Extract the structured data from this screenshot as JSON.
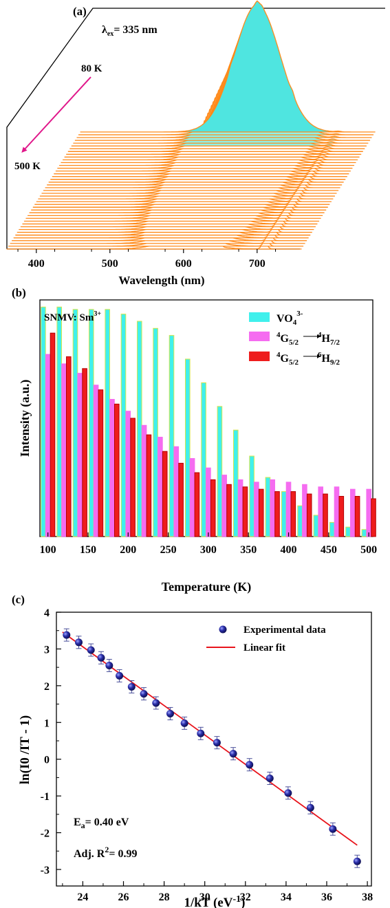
{
  "panels": {
    "a": {
      "label": "(a)"
    },
    "b": {
      "label": "(b)"
    },
    "c": {
      "label": "(c)"
    }
  },
  "chart_data": [
    {
      "type": "area",
      "panel": "a",
      "title": "",
      "xlabel": "Wavelength (nm)",
      "ylabel": "",
      "x_ticks": [
        400,
        500,
        600,
        700
      ],
      "xlim": [
        360,
        760
      ],
      "annotations": {
        "excitation_prefix": "λ",
        "excitation_sub": "ex",
        "excitation_suffix": "= 335 nm",
        "temp_start": "80 K",
        "temp_end": "500 K"
      },
      "series_temperatures_K": [
        80,
        500
      ],
      "series_count": 43,
      "components": {
        "broad_band_peak_nm": 600,
        "sharp_peaks_nm": [
          564,
          600,
          648,
          710
        ]
      },
      "colors": {
        "lines": "#ff8a1a",
        "fill_front": "#4fe5e0",
        "arrow": "#e0178a"
      }
    },
    {
      "type": "bar",
      "panel": "b",
      "title": "",
      "xlabel": "Temperature (K)",
      "ylabel": "Intensity (a.u.)",
      "x_ticks": [
        100,
        150,
        200,
        250,
        300,
        350,
        400,
        450,
        500
      ],
      "xlim": [
        90,
        505
      ],
      "ylim": [
        0,
        100
      ],
      "annotation": {
        "sample_prefix": "SNMV: Sm",
        "sample_sup": "3+"
      },
      "categories": [
        100,
        120,
        140,
        160,
        180,
        200,
        220,
        240,
        260,
        280,
        300,
        320,
        340,
        360,
        380,
        400,
        420,
        440,
        460,
        480,
        500
      ],
      "series": [
        {
          "name": "VO4 3-",
          "legend": {
            "main": "VO",
            "sub": "4",
            "sup": "3-"
          },
          "color": "#40f0ec",
          "edge": "#d8e44a",
          "values": [
            97,
            97,
            96,
            96,
            96,
            94,
            91,
            88,
            85,
            75,
            65,
            55,
            45,
            34,
            25,
            19,
            13,
            9,
            6,
            4,
            3
          ]
        },
        {
          "name": "4G5/2 → 4H7/2",
          "legend": {
            "sup1": "4",
            "main1": "G",
            "sub1": "5/2",
            "sup2": "4",
            "main2": "H",
            "sub2": "7/2"
          },
          "color": "#f56cf0",
          "edge": "#f56cf0",
          "values": [
            77,
            73,
            69,
            64,
            58,
            53,
            47,
            42,
            38,
            33,
            29,
            26,
            24,
            23,
            24,
            23,
            22,
            21,
            21,
            20,
            20
          ]
        },
        {
          "name": "4G5/2 → 6H9/2",
          "legend": {
            "sup1": "4",
            "main1": "G",
            "sub1": "5/2",
            "sup2": "6",
            "main2": "H",
            "sub2": "9/2"
          },
          "color": "#ee1c1c",
          "edge": "#b50000",
          "values": [
            86,
            76,
            71,
            62,
            56,
            50,
            43,
            36,
            31,
            27,
            24,
            22,
            21,
            20,
            19,
            19,
            18,
            18,
            17,
            17,
            16
          ]
        }
      ]
    },
    {
      "type": "scatter",
      "panel": "c",
      "title": "",
      "xlabel": "1/kT (eV",
      "xlabel_sup": "-1",
      "xlabel_close": ")",
      "ylabel": "ln(I0 /IT - 1)",
      "x_ticks": [
        24,
        26,
        28,
        30,
        32,
        34,
        36,
        38
      ],
      "y_ticks": [
        4,
        3,
        2,
        1,
        0,
        -1,
        -2,
        -3
      ],
      "xlim": [
        22.7,
        38.2
      ],
      "ylim": [
        -3.45,
        4
      ],
      "legend": {
        "points": "Experimental data",
        "line": "Linear fit",
        "position": "top-right"
      },
      "annotations": {
        "ea_main": "E",
        "ea_sub": "a",
        "ea_value": "= 0.40 eV",
        "r2_main": "Adj. R",
        "r2_sup": "2",
        "r2_value": "= 0.99"
      },
      "points": [
        {
          "x": 23.2,
          "y": 3.38
        },
        {
          "x": 23.8,
          "y": 3.18
        },
        {
          "x": 24.4,
          "y": 2.97
        },
        {
          "x": 24.9,
          "y": 2.76
        },
        {
          "x": 25.3,
          "y": 2.55
        },
        {
          "x": 25.8,
          "y": 2.27
        },
        {
          "x": 26.4,
          "y": 1.97
        },
        {
          "x": 27.0,
          "y": 1.78
        },
        {
          "x": 27.6,
          "y": 1.53
        },
        {
          "x": 28.3,
          "y": 1.24
        },
        {
          "x": 29.0,
          "y": 0.98
        },
        {
          "x": 29.8,
          "y": 0.7
        },
        {
          "x": 30.6,
          "y": 0.45
        },
        {
          "x": 31.4,
          "y": 0.15
        },
        {
          "x": 32.2,
          "y": -0.15
        },
        {
          "x": 33.2,
          "y": -0.52
        },
        {
          "x": 34.1,
          "y": -0.92
        },
        {
          "x": 35.2,
          "y": -1.32
        },
        {
          "x": 36.3,
          "y": -1.9
        },
        {
          "x": 37.5,
          "y": -2.78
        }
      ],
      "fit": {
        "slope": -0.4,
        "x_range": [
          23.0,
          37.5
        ],
        "point": {
          "x": 23.2,
          "y": 3.38
        }
      },
      "colors": {
        "points": "#1b1c8c",
        "line": "#e8131b"
      }
    }
  ]
}
